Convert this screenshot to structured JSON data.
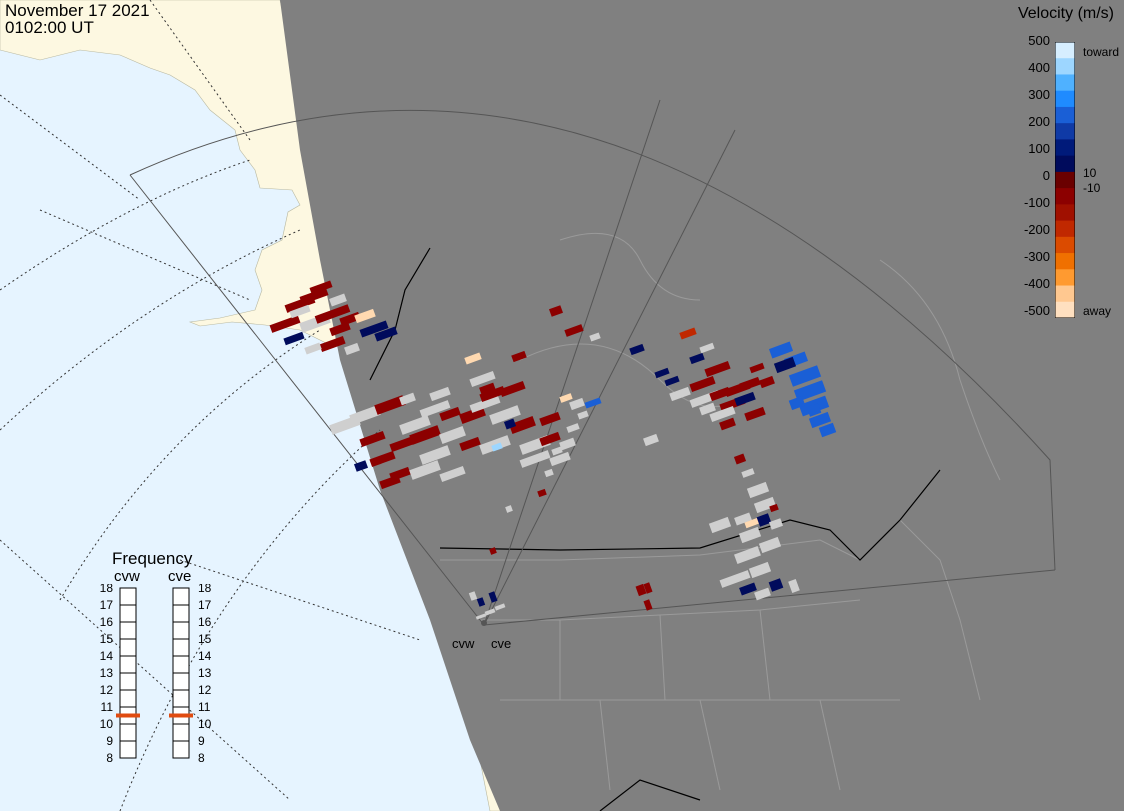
{
  "header": {
    "date": "November 17 2021",
    "time": "0102:00 UT"
  },
  "colorbar": {
    "title": "Velocity (m/s)",
    "ticks": [
      "500",
      "400",
      "300",
      "200",
      "100",
      "0",
      "-100",
      "-200",
      "-300",
      "-400",
      "-500"
    ],
    "minor_labels": {
      "pos": "10",
      "neg": "-10"
    },
    "toward_label": "toward",
    "away_label": "away",
    "colors": [
      "#d6eeff",
      "#9dd6ff",
      "#4fb1ff",
      "#1f8bff",
      "#1a5fd6",
      "#0f3aa6",
      "#001a7a",
      "#000b5c",
      "#6a0000",
      "#8c0000",
      "#a01000",
      "#c02800",
      "#db4b00",
      "#f07000",
      "#ff9a30",
      "#ffc890",
      "#ffe0c0"
    ]
  },
  "frequency": {
    "title": "Frequency",
    "radars": [
      "cvw",
      "cve"
    ],
    "scale": [
      "18",
      "17",
      "16",
      "15",
      "14",
      "13",
      "12",
      "11",
      "10",
      "9",
      "8"
    ],
    "values_mhz": [
      10.5,
      10.5
    ],
    "marker_color": "#e04b10"
  },
  "radars": {
    "labels": [
      "cvw",
      "cve"
    ]
  },
  "map": {
    "ocean_color": "#e6f4ff",
    "land_day_color": "#fdf8e1",
    "night_color": "#808080",
    "border_color": "#9a9a9a"
  }
}
